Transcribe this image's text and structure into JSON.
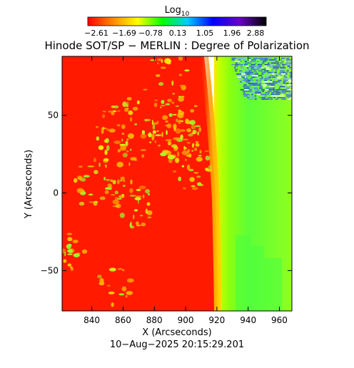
{
  "colorbar": {
    "label_main": "Log",
    "label_sub": "10",
    "ticks": [
      "−2.61",
      "−1.69",
      "−0.78",
      "0.13",
      "1.05",
      "1.96",
      "2.88"
    ],
    "colors": [
      "#ff0000",
      "#ff8800",
      "#ffff00",
      "#00ff00",
      "#00ccff",
      "#0000ff",
      "#6a00c8",
      "#000000"
    ]
  },
  "title": "Hinode SOT/SP − MERLIN : Degree of Polarization",
  "footer_date": "10−Aug−2025 20:15:29.201",
  "chart_data": {
    "type": "heatmap",
    "title": "Hinode SOT/SP − MERLIN : Degree of Polarization",
    "xlabel": "X (Arcseconds)",
    "ylabel": "Y (Arcseconds)",
    "xlim": [
      821,
      968
    ],
    "ylim": [
      -76,
      88
    ],
    "x_ticks": [
      840,
      860,
      880,
      900,
      920,
      940,
      960
    ],
    "y_ticks": [
      50,
      0,
      -50
    ],
    "x_tick_labels": [
      "840",
      "860",
      "880",
      "900",
      "920",
      "940",
      "960"
    ],
    "y_tick_labels": [
      "50",
      "0",
      "−50"
    ],
    "colorbar_scale": "log10",
    "colorbar_range": [
      -2.61,
      2.88
    ],
    "limb_x": 918,
    "regions": [
      {
        "region": "solar disk",
        "x_range": [
          821,
          917
        ],
        "value": -2.61,
        "color": "#ff1a00"
      },
      {
        "region": "limb",
        "x_range": [
          917,
          922
        ],
        "value": -1.3,
        "color": "#ffe000"
      },
      {
        "region": "off-limb near",
        "x_range": [
          922,
          930
        ],
        "value": -0.7,
        "color": "#a8ff00"
      },
      {
        "region": "off-limb far",
        "x_range": [
          930,
          968
        ],
        "value": 0.0,
        "color": "#5aff3a"
      },
      {
        "region": "noise band top-right",
        "x_range": [
          940,
          968
        ],
        "y_range": [
          60,
          88
        ],
        "value": 1.5,
        "color": "#2b3cff"
      }
    ],
    "grid": false
  }
}
